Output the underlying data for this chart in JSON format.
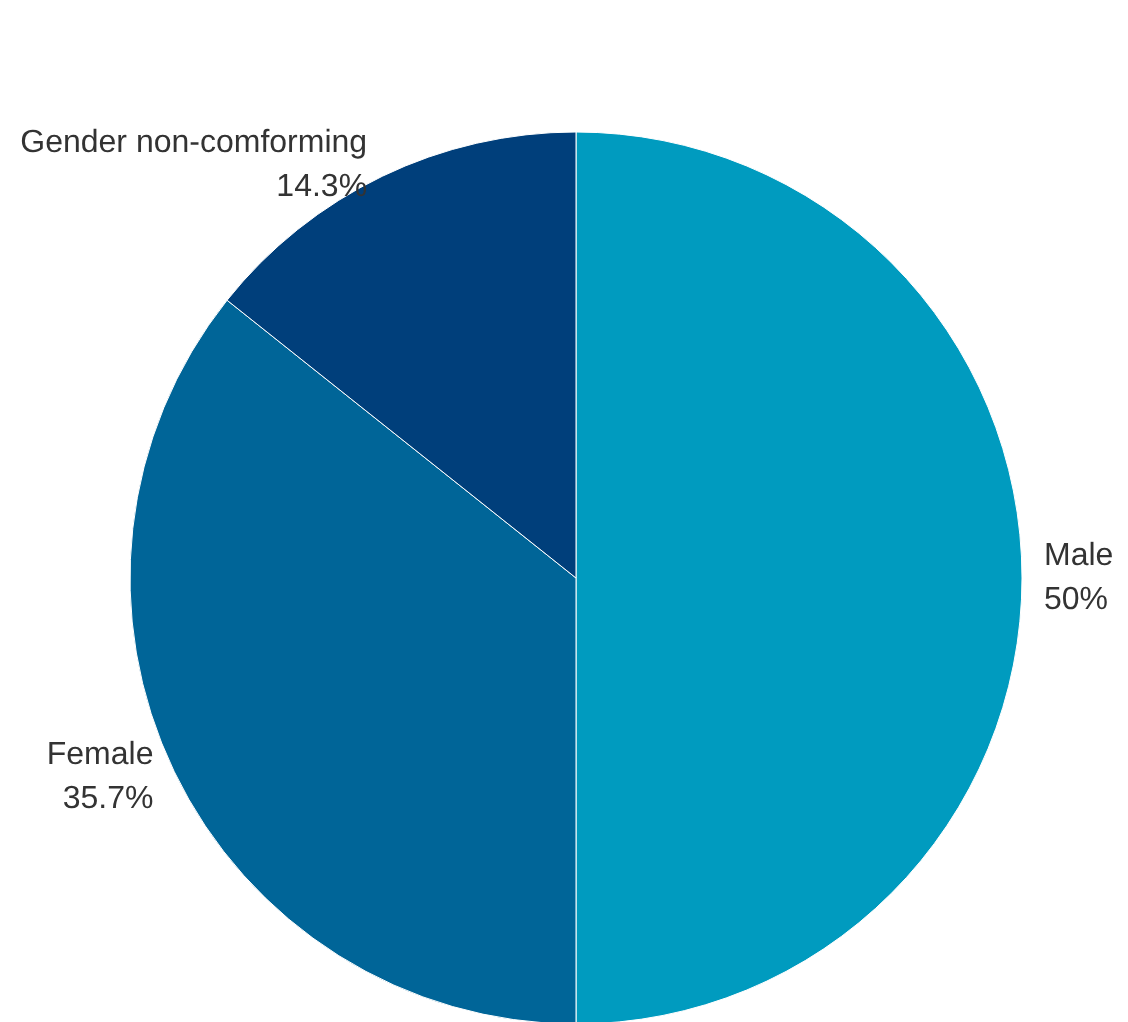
{
  "chart_data": {
    "type": "pie",
    "categories": [
      "Male",
      "Female",
      "Gender non-comforming"
    ],
    "values": [
      50,
      35.7,
      14.3
    ],
    "colors": [
      "#009bbf",
      "#006598",
      "#003f7b"
    ],
    "value_labels": [
      "50%",
      "35.7%",
      "14.3%"
    ]
  }
}
